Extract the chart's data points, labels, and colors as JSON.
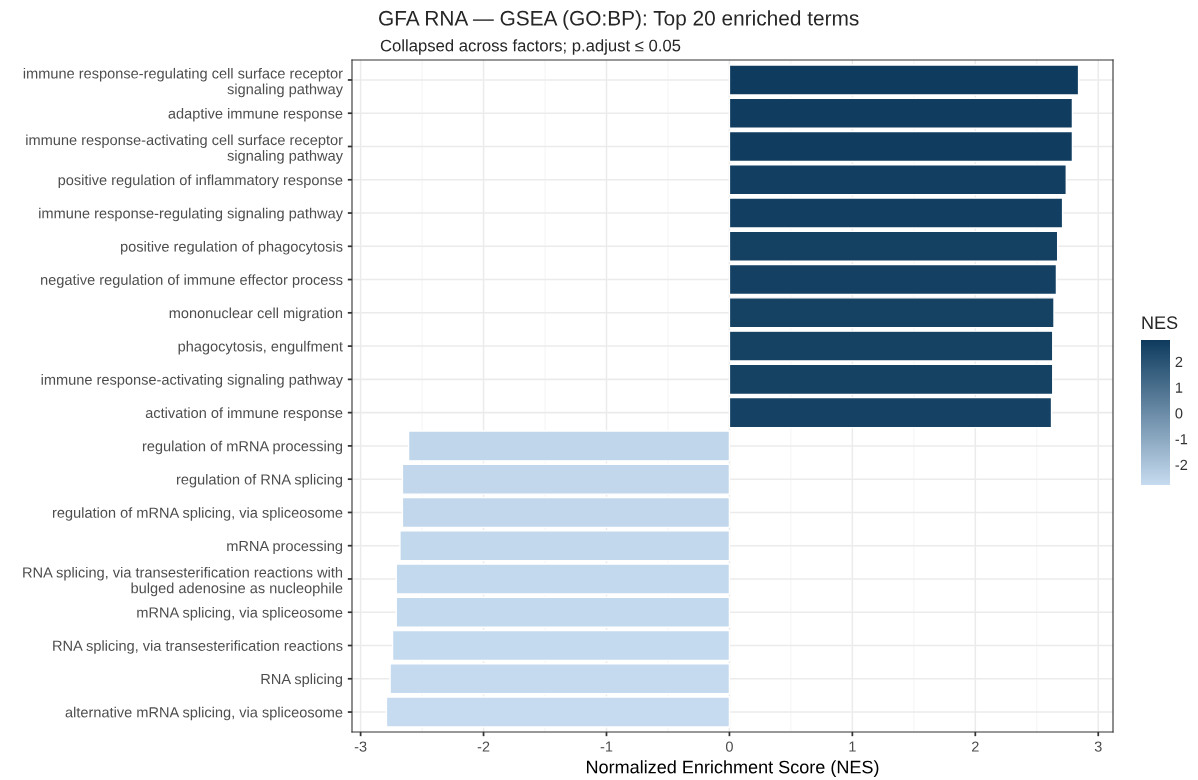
{
  "chart_data": {
    "type": "bar",
    "orientation": "horizontal",
    "title": "GFA RNA — GSEA (GO:BP): Top 20 enriched terms",
    "subtitle": "Collapsed across factors; p.adjust ≤ 0.05",
    "xlabel": "Normalized Enrichment Score (NES)",
    "clabel": "NES",
    "categories": [
      "immune response-regulating cell surface receptor\nsignaling pathway",
      "adaptive immune response",
      "immune response-activating cell surface receptor\nsignaling pathway",
      "positive regulation of inflammatory response",
      "immune response-regulating signaling pathway",
      "positive regulation of phagocytosis",
      "negative regulation of immune effector process",
      "mononuclear cell migration",
      "phagocytosis, engulfment",
      "immune response-activating signaling pathway",
      "activation of immune response",
      "regulation of mRNA processing",
      "regulation of RNA splicing",
      "regulation of mRNA splicing, via spliceosome",
      "mRNA processing",
      "RNA splicing, via transesterification reactions with\nbulged adenosine as nucleophile",
      "mRNA splicing, via spliceosome",
      "RNA splicing, via transesterification reactions",
      "RNA splicing",
      "alternative mRNA splicing, via spliceosome"
    ],
    "values": [
      2.84,
      2.79,
      2.79,
      2.74,
      2.71,
      2.67,
      2.66,
      2.64,
      2.63,
      2.63,
      2.62,
      -2.61,
      -2.66,
      -2.66,
      -2.68,
      -2.71,
      -2.71,
      -2.74,
      -2.76,
      -2.79
    ],
    "colors": [
      "#0e3b5e",
      "#103c5f",
      "#103c5f",
      "#113e61",
      "#123f61",
      "#144062",
      "#144063",
      "#154163",
      "#154163",
      "#154163",
      "#154164",
      "#c0d6ea",
      "#c2d7ec",
      "#c2d7ec",
      "#c2d8ec",
      "#c3d9ed",
      "#c3d9ed",
      "#c4daee",
      "#c5daee",
      "#c6dbef"
    ],
    "xlim": [
      -3.07,
      3.12
    ],
    "xticks": [
      -3,
      -2,
      -1,
      0,
      1,
      2,
      3
    ],
    "clim": [
      -2.79,
      2.84
    ],
    "cticks": [
      -2,
      -1,
      0,
      1,
      2
    ],
    "grid": true
  }
}
